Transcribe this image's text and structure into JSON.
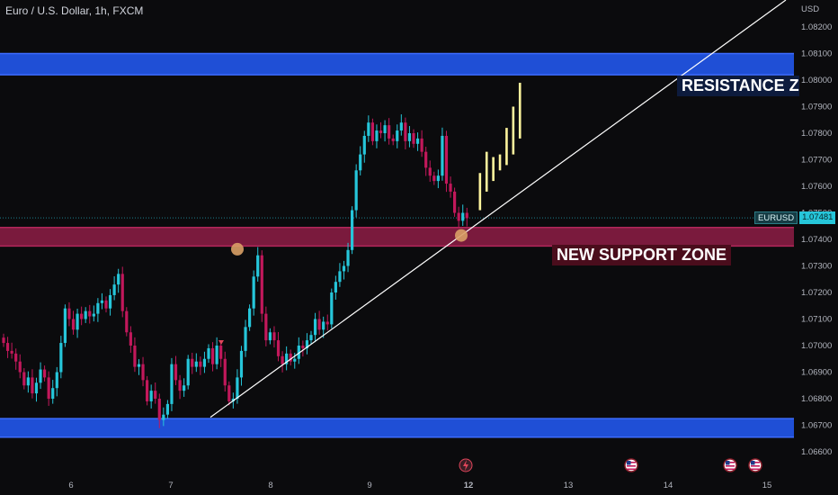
{
  "header": {
    "title": "Euro / U.S. Dollar, 1h, FXCM",
    "currency": "USD"
  },
  "labels": {
    "resistance": "RESISTANCE ZONE",
    "support": "NEW SUPPORT ZONE"
  },
  "price_tag": {
    "symbol": "EURUSD",
    "value": "1.07481"
  },
  "colors": {
    "background": "#0b0b0d",
    "up_candle": "#26c6da",
    "down_candle": "#c2185b",
    "forecast_candle": "#fff59d",
    "resistance_zone": "#1f4fd6",
    "support_zone": "#7a1a3d",
    "trendline": "#ffffff",
    "marker": "#d9a066"
  },
  "event_icons": [
    "lightning-icon",
    "us-flag-icon",
    "us-flag-icon",
    "us-flag-icon"
  ],
  "chart_data": {
    "type": "candlestick",
    "title": "Euro / U.S. Dollar, 1h, FXCM",
    "ylabel": "USD",
    "ylim": [
      1.0655,
      1.0835
    ],
    "yticks": [
      "1.06600",
      "1.06700",
      "1.06800",
      "1.06900",
      "1.07000",
      "1.07100",
      "1.07200",
      "1.07300",
      "1.07400",
      "1.07500",
      "1.07600",
      "1.07700",
      "1.07800",
      "1.07900",
      "1.08000",
      "1.08100",
      "1.08200"
    ],
    "x_day_ticks": [
      "6",
      "7",
      "8",
      "9",
      "12",
      "13",
      "14",
      "15"
    ],
    "grid": false,
    "zones": [
      {
        "name": "RESISTANCE ZONE",
        "low": 1.0802,
        "high": 1.081
      },
      {
        "name": "NEW SUPPORT ZONE",
        "low": 1.07375,
        "high": 1.07445
      },
      {
        "name": "support",
        "low": 1.06655,
        "high": 1.06725
      }
    ],
    "last_price": 1.07481,
    "candles_close": [
      1.0701,
      1.0698,
      1.0697,
      1.0694,
      1.069,
      1.0685,
      1.0688,
      1.0682,
      1.0686,
      1.0691,
      1.0688,
      1.068,
      1.0684,
      1.069,
      1.0701,
      1.0714,
      1.071,
      1.0706,
      1.0712,
      1.071,
      1.0713,
      1.0711,
      1.0712,
      1.0716,
      1.0717,
      1.0714,
      1.0719,
      1.0723,
      1.0727,
      1.0713,
      1.0705,
      1.07,
      1.0692,
      1.0693,
      1.0687,
      1.0679,
      1.0683,
      1.068,
      1.0672,
      1.0674,
      1.0678,
      1.0693,
      1.0687,
      1.0683,
      1.0685,
      1.0695,
      1.0692,
      1.0694,
      1.0692,
      1.0695,
      1.0699,
      1.0693,
      1.07,
      1.0695,
      1.0685,
      1.0679,
      1.068,
      1.0688,
      1.0698,
      1.0707,
      1.0714,
      1.0726,
      1.0734,
      1.0712,
      1.0702,
      1.0705,
      1.0702,
      1.0696,
      1.0693,
      1.0697,
      1.0694,
      1.0695,
      1.07,
      1.0699,
      1.0702,
      1.0704,
      1.071,
      1.0706,
      1.0709,
      1.0708,
      1.072,
      1.0724,
      1.0728,
      1.073,
      1.0736,
      1.0751,
      1.0766,
      1.0772,
      1.0779,
      1.0784,
      1.0777,
      1.0781,
      1.078,
      1.0783,
      1.0778,
      1.0777,
      1.0781,
      1.0784,
      1.0777,
      1.078,
      1.0776,
      1.0778,
      1.0773,
      1.0767,
      1.0764,
      1.0762,
      1.0764,
      1.0779,
      1.0761,
      1.0758,
      1.075,
      1.0747,
      1.075,
      1.0748
    ],
    "forecast": [
      {
        "open": 1.0751,
        "close": 1.0765
      },
      {
        "open": 1.0758,
        "close": 1.0773
      },
      {
        "open": 1.0762,
        "close": 1.0771
      },
      {
        "open": 1.0766,
        "close": 1.0772
      },
      {
        "open": 1.0768,
        "close": 1.0782
      },
      {
        "open": 1.0772,
        "close": 1.079
      },
      {
        "open": 1.0778,
        "close": 1.0799
      }
    ]
  }
}
